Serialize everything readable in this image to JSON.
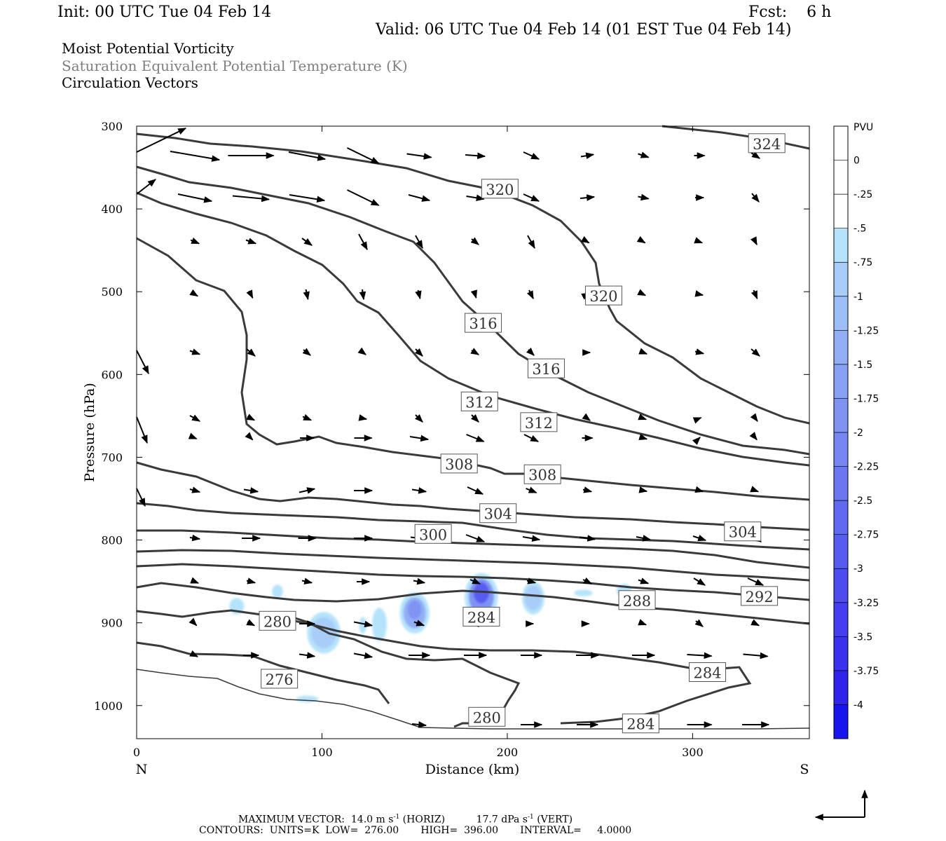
{
  "header": {
    "init": "Init: 00 UTC Tue 04 Feb 14",
    "fcst_label": "Fcst:",
    "fcst_value": "6 h",
    "valid": "Valid: 06 UTC Tue 04 Feb 14 (01 EST Tue 04 Feb 14)"
  },
  "titles": {
    "line1": "Moist Potential Vorticity",
    "line2": "Saturation Equivalent Potential Temperature (K)",
    "line3": "Circulation Vectors"
  },
  "chart_data": {
    "type": "cross-section",
    "xlabel": "Distance (km)",
    "ylabel": "Pressure (hPa)",
    "xlim": [
      0,
      363
    ],
    "ylim": [
      1040,
      300
    ],
    "x_ticks": [
      0,
      100,
      200,
      300
    ],
    "y_ticks": [
      300,
      400,
      500,
      600,
      700,
      800,
      900,
      1000
    ],
    "x_end_labels": {
      "left": "N",
      "right": "S"
    },
    "y_scale": "linear",
    "colorbar": {
      "unit": "PVU",
      "ticks": [
        "0",
        "-.25",
        "-.5",
        "-.75",
        "-1",
        "-1.25",
        "-1.5",
        "-1.75",
        "-2",
        "-2.25",
        "-2.5",
        "-2.75",
        "-3",
        "-3.25",
        "-3.5",
        "-3.75",
        "-4"
      ],
      "colors": [
        "#ffffff",
        "#ffffff",
        "#b5e3fb",
        "#a8cdf8",
        "#9dbdf6",
        "#93aef5",
        "#89a1f4",
        "#7f93f3",
        "#7585f2",
        "#6b77f1",
        "#6169f0",
        "#575bef",
        "#4d4def",
        "#433fee",
        "#3931ed",
        "#2f23ec",
        "#1515ec"
      ]
    },
    "contours": {
      "units": "K",
      "low": 276.0,
      "high": 396.0,
      "interval": 4.0,
      "labels": [
        {
          "text": "324",
          "x": 340,
          "p": 321
        },
        {
          "text": "320",
          "x": 196,
          "p": 376
        },
        {
          "text": "320",
          "x": 252,
          "p": 505
        },
        {
          "text": "316",
          "x": 187,
          "p": 538
        },
        {
          "text": "316",
          "x": 221,
          "p": 593
        },
        {
          "text": "312",
          "x": 185,
          "p": 633
        },
        {
          "text": "312",
          "x": 217,
          "p": 658
        },
        {
          "text": "308",
          "x": 174,
          "p": 708
        },
        {
          "text": "308",
          "x": 219,
          "p": 721
        },
        {
          "text": "304",
          "x": 195,
          "p": 768
        },
        {
          "text": "304",
          "x": 327,
          "p": 790
        },
        {
          "text": "300",
          "x": 160,
          "p": 793
        },
        {
          "text": "292",
          "x": 336,
          "p": 868
        },
        {
          "text": "288",
          "x": 270,
          "p": 873
        },
        {
          "text": "284",
          "x": 186,
          "p": 893
        },
        {
          "text": "280",
          "x": 76,
          "p": 898
        },
        {
          "text": "284",
          "x": 308,
          "p": 960
        },
        {
          "text": "276",
          "x": 77,
          "p": 968
        },
        {
          "text": "280",
          "x": 189,
          "p": 1014
        },
        {
          "text": "284",
          "x": 272,
          "p": 1022
        }
      ]
    },
    "pv_blobs": [
      {
        "x": 54,
        "p": 880,
        "rx": 4,
        "rp": 10,
        "value": -0.5
      },
      {
        "x": 76,
        "p": 862,
        "rx": 3,
        "rp": 8,
        "value": -0.5
      },
      {
        "x": 101,
        "p": 912,
        "rx": 9,
        "rp": 25,
        "value": -0.75
      },
      {
        "x": 122,
        "p": 903,
        "rx": 2,
        "rp": 10,
        "value": -0.5
      },
      {
        "x": 131,
        "p": 902,
        "rx": 4,
        "rp": 20,
        "value": -0.5
      },
      {
        "x": 150,
        "p": 888,
        "rx": 8,
        "rp": 25,
        "value": -1.5
      },
      {
        "x": 186,
        "p": 868,
        "rx": 9,
        "rp": 28,
        "value": -2.5
      },
      {
        "x": 214,
        "p": 870,
        "rx": 6,
        "rp": 20,
        "value": -0.75
      },
      {
        "x": 241,
        "p": 864,
        "rx": 5,
        "rp": 4,
        "value": -0.5
      },
      {
        "x": 263,
        "p": 861,
        "rx": 4,
        "rp": 8,
        "value": -0.5
      },
      {
        "x": 92,
        "p": 992,
        "rx": 6,
        "rp": 4,
        "value": -0.5
      }
    ],
    "vectors": {
      "max_horiz": "14.0",
      "max_vert": "17.7"
    }
  },
  "footer": {
    "max_vector_label": "MAXIMUM VECTOR:",
    "horiz_value": "14.0 m s",
    "horiz_exp": "-1",
    "horiz_tag": "(HORIZ)",
    "vert_value": "17.7 dPa s",
    "vert_exp": "-1",
    "vert_tag": "(VERT)",
    "contours_line": "CONTOURS:  UNITS=K  LOW=  276.00       HIGH=  396.00       INTERVAL=     4.0000"
  }
}
